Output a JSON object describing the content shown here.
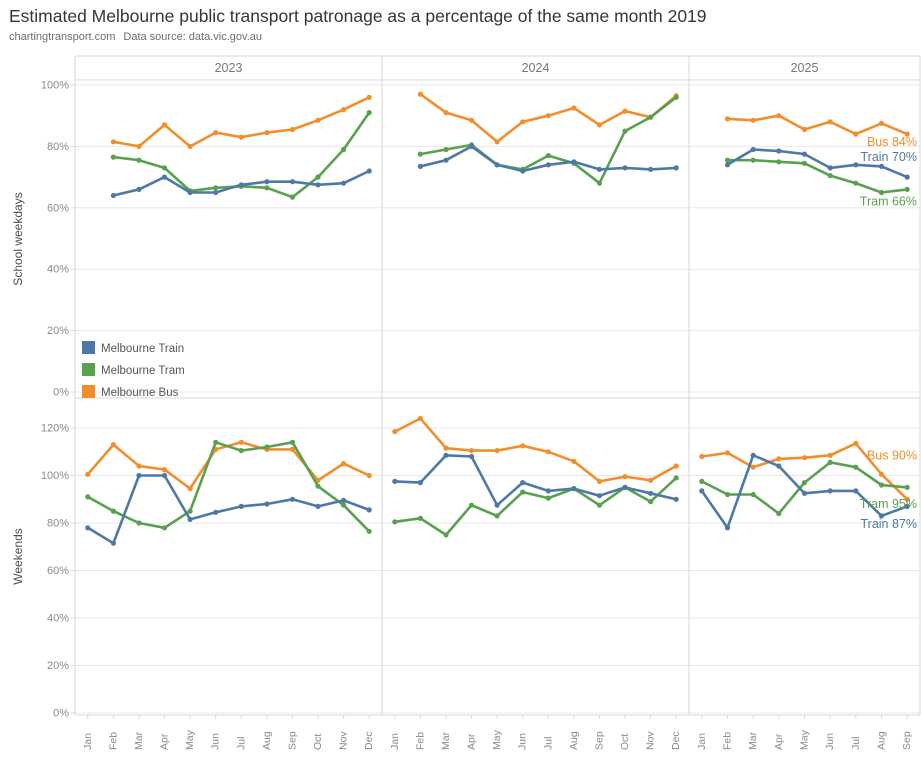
{
  "title": "Estimated Melbourne public transport patronage as a percentage of the same month 2019",
  "subtitle_left": "chartingtransport.com",
  "subtitle_right": "Data source: data.vic.gov.au",
  "colors": {
    "train": "#4e79a7",
    "tram": "#59a14f",
    "bus": "#f28e2b",
    "grid": "#e8e8e8",
    "border": "#d7d7d7",
    "axis_text": "#8a8a8a",
    "header_text": "#787878",
    "row_label_text": "#4d4d4d"
  },
  "legend": {
    "items": [
      {
        "key": "train",
        "label": "Melbourne Train"
      },
      {
        "key": "tram",
        "label": "Melbourne Tram"
      },
      {
        "key": "bus",
        "label": "Melbourne Bus"
      }
    ]
  },
  "chart_data": {
    "type": "line",
    "title": "Estimated Melbourne public transport patronage as a percentage of the same month 2019",
    "subtitle": "chartingtransport.com  Data source: data.vic.gov.au",
    "grid": "horizontal-only",
    "legend_position": "inside top-left panel, lower left",
    "ylabel_units": "percent of same month 2019",
    "facet_rows": [
      {
        "label": "School weekdays",
        "ylim": [
          0,
          101
        ],
        "yticks": [
          0,
          20,
          40,
          60,
          80,
          100
        ]
      },
      {
        "label": "Weekends",
        "ylim": [
          0,
          133
        ],
        "yticks": [
          0,
          20,
          40,
          60,
          80,
          100,
          120
        ]
      }
    ],
    "facet_cols": [
      {
        "label": "2023",
        "months": [
          "Jan",
          "Feb",
          "Mar",
          "Apr",
          "May",
          "Jun",
          "Jul",
          "Aug",
          "Sep",
          "Oct",
          "Nov",
          "Dec"
        ]
      },
      {
        "label": "2024",
        "months": [
          "Jan",
          "Feb",
          "Mar",
          "Apr",
          "May",
          "Jun",
          "Jul",
          "Aug",
          "Sep",
          "Oct",
          "Nov",
          "Dec"
        ]
      },
      {
        "label": "2025",
        "months": [
          "Jan",
          "Feb",
          "Mar",
          "Apr",
          "May",
          "Jun",
          "Jul",
          "Aug",
          "Sep"
        ]
      }
    ],
    "panels": [
      {
        "row": 0,
        "col": 0,
        "series": [
          {
            "key": "bus",
            "name": "Melbourne Bus",
            "values": [
              null,
              81.5,
              80,
              87,
              80,
              84.5,
              83,
              84.5,
              85.5,
              88.5,
              92,
              96
            ]
          },
          {
            "key": "tram",
            "name": "Melbourne Tram",
            "values": [
              null,
              76.5,
              75.5,
              73,
              65.5,
              66.5,
              67,
              66.5,
              63.5,
              70,
              79,
              91
            ]
          },
          {
            "key": "train",
            "name": "Melbourne Train",
            "values": [
              null,
              64,
              66,
              70,
              65,
              65,
              67.5,
              68.5,
              68.5,
              67.5,
              68,
              72
            ]
          }
        ]
      },
      {
        "row": 0,
        "col": 1,
        "series": [
          {
            "key": "bus",
            "name": "Melbourne Bus",
            "values": [
              null,
              97,
              91,
              88.5,
              81.5,
              88,
              90,
              92.5,
              87,
              91.5,
              89.5,
              96.5
            ]
          },
          {
            "key": "tram",
            "name": "Melbourne Tram",
            "values": [
              null,
              77.5,
              79,
              80.5,
              74,
              72.5,
              77,
              74.5,
              68,
              85,
              89.5,
              96
            ]
          },
          {
            "key": "train",
            "name": "Melbourne Train",
            "values": [
              null,
              73.5,
              75.5,
              80,
              74,
              72,
              74,
              75,
              72.5,
              73,
              72.5,
              73
            ]
          }
        ]
      },
      {
        "row": 0,
        "col": 2,
        "series": [
          {
            "key": "bus",
            "name": "Melbourne Bus",
            "values": [
              null,
              89,
              88.5,
              90,
              85.5,
              88,
              84,
              87.5,
              84
            ]
          },
          {
            "key": "tram",
            "name": "Melbourne Tram",
            "values": [
              null,
              75.5,
              75.5,
              75,
              74.5,
              70.5,
              68,
              65,
              66
            ]
          },
          {
            "key": "train",
            "name": "Melbourne Train",
            "values": [
              null,
              74,
              79,
              78.5,
              77.5,
              73,
              74,
              73.5,
              70
            ]
          }
        ]
      },
      {
        "row": 1,
        "col": 0,
        "series": [
          {
            "key": "bus",
            "name": "Melbourne Bus",
            "values": [
              100.5,
              113,
              104,
              102.5,
              94.5,
              111,
              114,
              111,
              111,
              98,
              105,
              100
            ]
          },
          {
            "key": "tram",
            "name": "Melbourne Tram",
            "values": [
              91,
              85,
              80,
              78,
              85,
              114,
              110.5,
              112,
              114,
              95.5,
              87.5,
              76.5
            ]
          },
          {
            "key": "train",
            "name": "Melbourne Train",
            "values": [
              78,
              71.5,
              100,
              100,
              81.5,
              84.5,
              87,
              88,
              90,
              87,
              89.5,
              85.5
            ]
          }
        ]
      },
      {
        "row": 1,
        "col": 1,
        "series": [
          {
            "key": "bus",
            "name": "Melbourne Bus",
            "values": [
              118.5,
              124,
              111.5,
              110.5,
              110.5,
              112.5,
              110,
              106,
              97.5,
              99.5,
              98,
              104
            ]
          },
          {
            "key": "tram",
            "name": "Melbourne Tram",
            "values": [
              80.5,
              82,
              75,
              87.5,
              83,
              93,
              90.5,
              94.5,
              87.5,
              95,
              89,
              99
            ]
          },
          {
            "key": "train",
            "name": "Melbourne Train",
            "values": [
              97.5,
              97,
              108.5,
              108,
              87.5,
              97,
              93.5,
              94.5,
              91.5,
              95,
              92.5,
              90
            ]
          }
        ]
      },
      {
        "row": 1,
        "col": 2,
        "series": [
          {
            "key": "bus",
            "name": "Melbourne Bus",
            "values": [
              108,
              109.5,
              103.5,
              107,
              107.5,
              108.5,
              113.5,
              100.5,
              90
            ]
          },
          {
            "key": "tram",
            "name": "Melbourne Tram",
            "values": [
              97.5,
              92,
              92,
              84,
              97,
              105.5,
              103.5,
              96,
              95
            ]
          },
          {
            "key": "train",
            "name": "Melbourne Train",
            "values": [
              93.5,
              78,
              108.5,
              104,
              92.5,
              93.5,
              93.5,
              83,
              87
            ]
          }
        ]
      }
    ],
    "end_labels": [
      {
        "row": 0,
        "col": 2,
        "key": "bus",
        "text": "Bus 84%",
        "v": 81.5
      },
      {
        "row": 0,
        "col": 2,
        "key": "train",
        "text": "Train 70%",
        "v": 76.5
      },
      {
        "row": 0,
        "col": 2,
        "key": "tram",
        "text": "Tram 66%",
        "v": 62
      },
      {
        "row": 1,
        "col": 2,
        "key": "bus",
        "text": "Bus 90%",
        "v": 108.5
      },
      {
        "row": 1,
        "col": 2,
        "key": "tram",
        "text": "Tram 95%",
        "v": 88
      },
      {
        "row": 1,
        "col": 2,
        "key": "train",
        "text": "Train 87%",
        "v": 79.5
      }
    ]
  }
}
